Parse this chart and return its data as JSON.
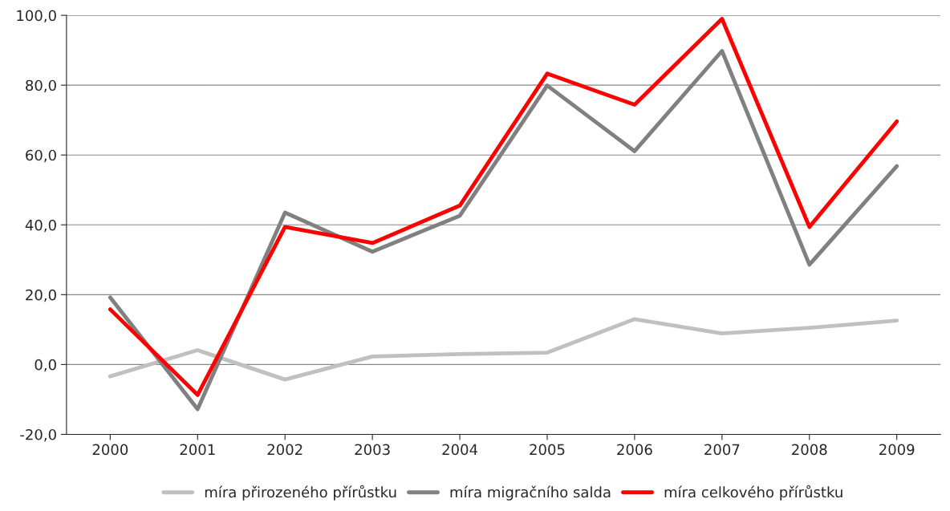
{
  "chart_data": {
    "type": "line",
    "categories": [
      "2000",
      "2001",
      "2002",
      "2003",
      "2004",
      "2005",
      "2006",
      "2007",
      "2008",
      "2009"
    ],
    "series": [
      {
        "name": "míra přirozeného přírůstku",
        "color": "#c0c0c0",
        "values": [
          -3.4,
          4.1,
          -4.3,
          2.3,
          3.0,
          3.4,
          13.0,
          8.9,
          10.5,
          12.6
        ]
      },
      {
        "name": "míra migračního salda",
        "color": "#808080",
        "values": [
          19.2,
          -12.8,
          43.5,
          32.3,
          42.6,
          79.9,
          61.1,
          89.8,
          28.6,
          56.8
        ]
      },
      {
        "name": "míra celkového přírůstku",
        "color": "#ff0000",
        "values": [
          15.8,
          -8.7,
          39.4,
          34.8,
          45.5,
          83.3,
          74.4,
          99.0,
          39.4,
          69.6
        ]
      }
    ],
    "ylim": [
      -20,
      100
    ],
    "yticks": [
      {
        "value": -20,
        "label": "-20,0"
      },
      {
        "value": 0,
        "label": "0,0"
      },
      {
        "value": 20,
        "label": "20,0"
      },
      {
        "value": 40,
        "label": "40,0"
      },
      {
        "value": 60,
        "label": "60,0"
      },
      {
        "value": 80,
        "label": "80,0"
      },
      {
        "value": 100,
        "label": "100,0"
      }
    ],
    "grid": "y",
    "legend": "bottom",
    "marker": "none",
    "line_style": "solid"
  }
}
